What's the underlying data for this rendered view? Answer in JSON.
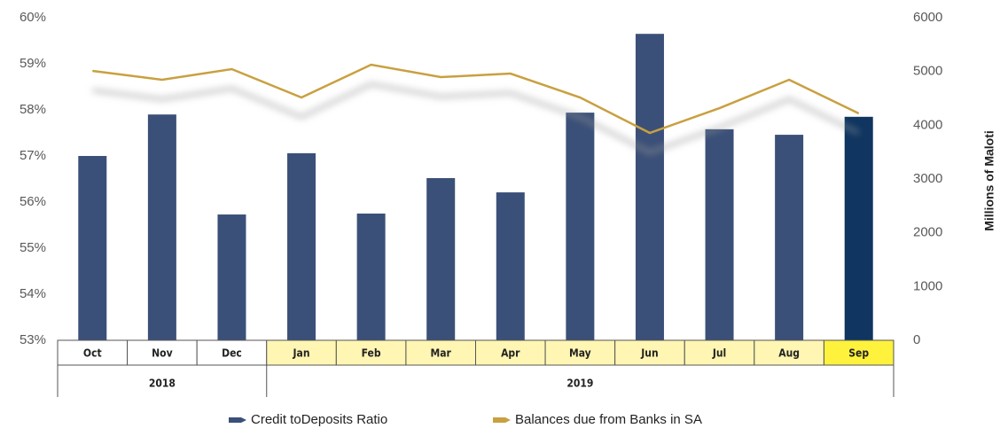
{
  "chart_data": {
    "type": "bar_line",
    "categories": [
      "Oct",
      "Nov",
      "Dec",
      "Jan",
      "Feb",
      "Mar",
      "Apr",
      "May",
      "Jun",
      "Jul",
      "Aug",
      "Sep"
    ],
    "category_colors": [
      "#ffffff",
      "#ffffff",
      "#ffffff",
      "#fff6b3",
      "#fff6b3",
      "#fff6b3",
      "#fff6b3",
      "#fff6b3",
      "#fff6b3",
      "#fff6b3",
      "#fff6b3",
      "#fff23c"
    ],
    "years": [
      {
        "label": "2018",
        "count": 3
      },
      {
        "label": "2019",
        "count": 9
      }
    ],
    "series": [
      {
        "name": "Credit toDeposits Ratio",
        "color": "#3b5078",
        "type": "bar",
        "colors": [
          "#3b5078",
          "#3b5078",
          "#3b5078",
          "#3b5078",
          "#3b5078",
          "#3b5078",
          "#3b5078",
          "#3b5078",
          "#3b5078",
          "#3b5078",
          "#3b5078",
          "#0f3560"
        ],
        "values": [
          57.0,
          57.9,
          55.73,
          57.06,
          55.75,
          56.52,
          56.21,
          57.94,
          59.65,
          57.58,
          57.46,
          57.85
        ]
      },
      {
        "name": "Balances due from Banks in SA",
        "color": "#c9a040",
        "type": "line",
        "axis": "y2",
        "values": [
          5011,
          4846,
          5044,
          4516,
          5126,
          4895,
          4961,
          4516,
          3857,
          4318,
          4846,
          4220
        ]
      }
    ],
    "ylim": [
      53,
      60
    ],
    "yticks": [
      {
        "value": 53,
        "label": "53%"
      },
      {
        "value": 54,
        "label": "54%"
      },
      {
        "value": 55,
        "label": "55%"
      },
      {
        "value": 56,
        "label": "56%"
      },
      {
        "value": 57,
        "label": "57%"
      },
      {
        "value": 58,
        "label": "58%"
      },
      {
        "value": 59,
        "label": "59%"
      },
      {
        "value": 60,
        "label": "60%"
      }
    ],
    "y2label": "Millions of Maloti",
    "y2lim": [
      0,
      6000
    ],
    "y2ticks": [
      0,
      1000,
      2000,
      3000,
      4000,
      5000,
      6000
    ]
  }
}
